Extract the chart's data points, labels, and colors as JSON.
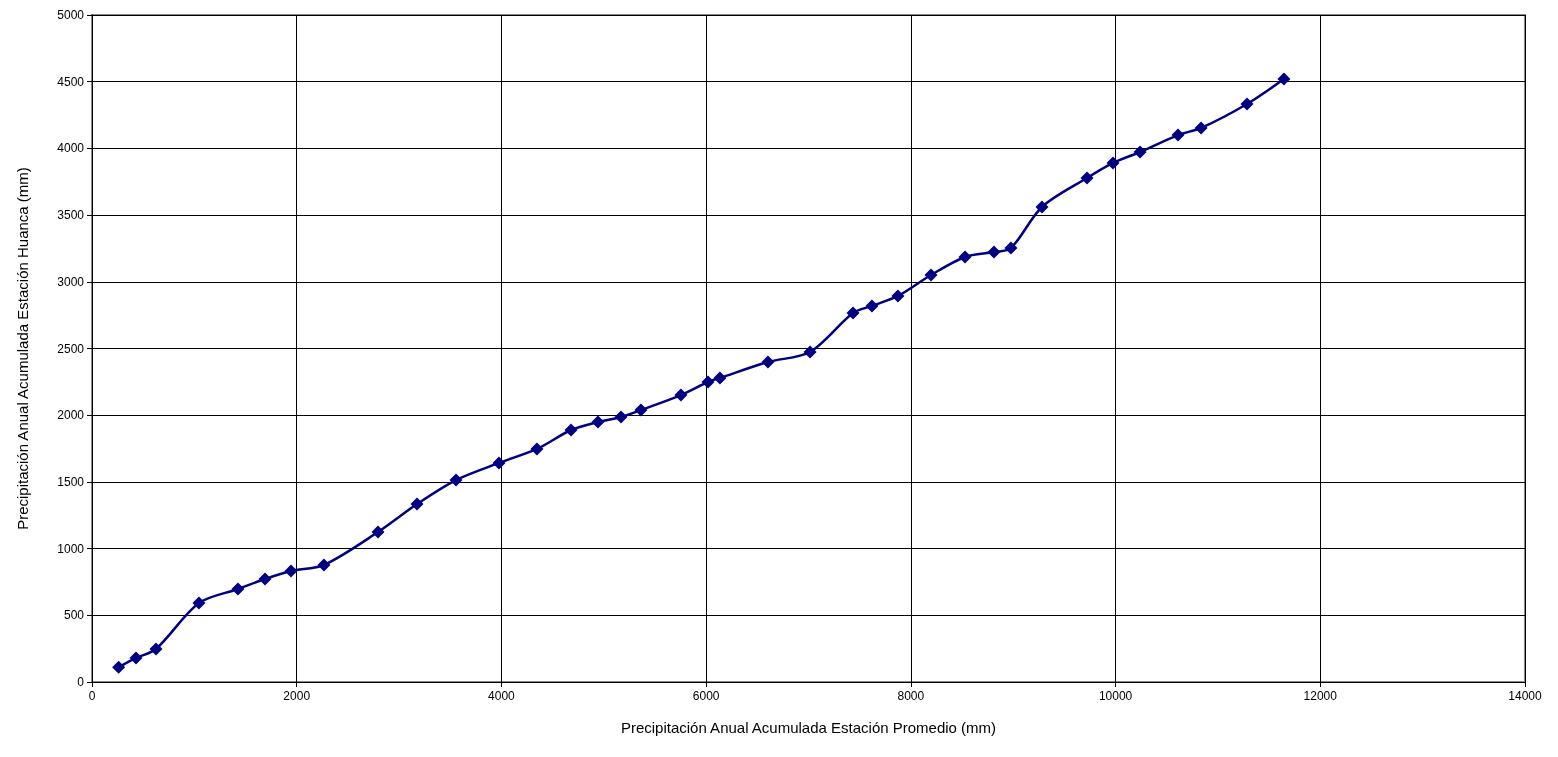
{
  "chart_data": {
    "type": "line",
    "xlabel": "Precipitación Anual Acumulada Estación Promedio (mm)",
    "ylabel": "Precipitación Anual Acumulada Estación Huanca (mm)",
    "xlim": [
      0,
      14000
    ],
    "xticks": [
      0,
      2000,
      4000,
      6000,
      8000,
      10000,
      12000,
      14000
    ],
    "ylim": [
      0,
      5000
    ],
    "yticks": [
      0,
      500,
      1000,
      1500,
      2000,
      2500,
      3000,
      3500,
      4000,
      4500,
      5000
    ],
    "grid": true,
    "marker": "diamond",
    "line_style": "solid",
    "series": [
      {
        "color": "#000080",
        "x": [
          260,
          430,
          625,
          1045,
          1426,
          1690,
          1944,
          2266,
          2794,
          3175,
          3556,
          3976,
          4347,
          4680,
          4943,
          5168,
          5363,
          5754,
          6018,
          6135,
          6604,
          7015,
          7435,
          7620,
          7874,
          8197,
          8529,
          8812,
          8978,
          9281,
          9721,
          9975,
          10239,
          10610,
          10835,
          11284,
          11645
        ],
        "values": [
          110,
          180,
          247,
          592,
          697,
          772,
          832,
          877,
          1124,
          1334,
          1514,
          1642,
          1747,
          1889,
          1949,
          1987,
          2039,
          2151,
          2249,
          2279,
          2399,
          2474,
          2766,
          2819,
          2894,
          3051,
          3186,
          3223,
          3253,
          3561,
          3778,
          3891,
          3973,
          4100,
          4153,
          4333,
          4520
        ]
      }
    ]
  }
}
